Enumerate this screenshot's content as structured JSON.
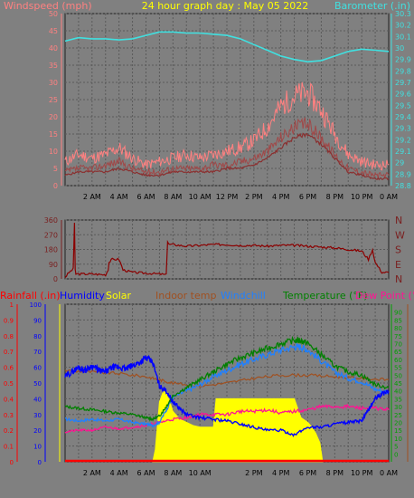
{
  "header": {
    "left_title": "Windspeed (mph)",
    "title": "24 hour graph day : May 05 2022",
    "right_title": "Barometer (.in)"
  },
  "colors": {
    "background": "#808080",
    "grid": "#5a5a5a",
    "wind_axis": "#ff8080",
    "baro_axis": "#40e0e0",
    "title": "#ffff00",
    "dir_axis": "#7a2020",
    "windspeed_line": "#ff8080",
    "windgust_line": "#ff8080",
    "avg_speed_line": "#8a3030",
    "direction_line": "#8b0000",
    "rain": "#ff0000",
    "humidity": "#0000ff",
    "solar": "#ffff00",
    "indoor": "#a05020",
    "windchill": "#2080ff",
    "temperature": "#008000",
    "dewpoint": "#ff1493",
    "temp_axis": "#00a000",
    "indoor_axis": "#a05020"
  },
  "chart_data": [
    {
      "type": "line",
      "x_tick_labels": [
        "2 AM",
        "4 AM",
        "6 AM",
        "8 AM",
        "10 AM",
        "12 PM",
        "2 PM",
        "4 PM",
        "6 PM",
        "8 PM",
        "10 PM",
        "0 AM"
      ],
      "xlim_hours": [
        0,
        24
      ],
      "y_left": {
        "label": "Windspeed (mph)",
        "ylim": [
          0,
          50
        ],
        "ticks": [
          "0",
          "5",
          "10",
          "15",
          "20",
          "25",
          "30",
          "35",
          "40",
          "45",
          "50"
        ]
      },
      "y_right": {
        "label": "Barometer (.in)",
        "ylim": [
          28.8,
          30.3
        ],
        "ticks": [
          "28.8",
          "28.9",
          "29",
          "29.1",
          "29.2",
          "29.3",
          "29.4",
          "29.5",
          "29.6",
          "29.7",
          "29.8",
          "29.9",
          "30",
          "30.1",
          "30.2",
          "30.3"
        ]
      },
      "series": [
        {
          "key": "barometer",
          "axis": "right",
          "x": [
            0,
            1,
            2,
            3,
            4,
            5,
            6,
            7,
            8,
            9,
            10,
            11,
            12,
            13,
            14,
            15,
            16,
            17,
            18,
            19,
            20,
            21,
            22,
            23,
            24
          ],
          "y": [
            30.06,
            30.09,
            30.08,
            30.08,
            30.07,
            30.08,
            30.11,
            30.14,
            30.14,
            30.13,
            30.13,
            30.12,
            30.11,
            30.08,
            30.03,
            29.98,
            29.93,
            29.9,
            29.88,
            29.89,
            29.93,
            29.97,
            29.99,
            29.98,
            29.97
          ]
        },
        {
          "key": "windgust",
          "axis": "left",
          "x": [
            0,
            1,
            2,
            3,
            4,
            5,
            6,
            7,
            8,
            9,
            10,
            11,
            12,
            13,
            14,
            15,
            16,
            17,
            18,
            19,
            20,
            21,
            22,
            23,
            24
          ],
          "y": [
            7,
            9,
            8,
            9,
            11,
            8,
            6,
            7,
            8,
            9,
            8,
            9,
            10,
            11,
            13,
            17,
            23,
            26,
            27,
            22,
            15,
            9,
            7,
            6,
            6
          ]
        },
        {
          "key": "windspeed",
          "axis": "left",
          "x": [
            0,
            1,
            2,
            3,
            4,
            5,
            6,
            7,
            8,
            9,
            10,
            11,
            12,
            13,
            14,
            15,
            16,
            17,
            18,
            19,
            20,
            21,
            22,
            23,
            24
          ],
          "y": [
            4,
            5,
            5,
            6,
            7,
            5,
            4,
            4,
            5,
            5,
            5,
            6,
            6,
            7,
            8,
            10,
            14,
            17,
            18,
            14,
            9,
            5,
            4,
            3,
            3
          ]
        },
        {
          "key": "avg_speed",
          "axis": "left",
          "x": [
            0,
            1,
            2,
            3,
            4,
            5,
            6,
            7,
            8,
            9,
            10,
            11,
            12,
            13,
            14,
            15,
            16,
            17,
            18,
            19,
            20,
            21,
            22,
            23,
            24
          ],
          "y": [
            3,
            4,
            4,
            4,
            5,
            4,
            3,
            3,
            4,
            4,
            4,
            4,
            5,
            5,
            6,
            8,
            11,
            14,
            15,
            12,
            8,
            4,
            3,
            2,
            2
          ]
        }
      ]
    },
    {
      "type": "line",
      "x_tick_labels": [],
      "xlim_hours": [
        0,
        24
      ],
      "y_left": {
        "label": "",
        "ylim": [
          0,
          360
        ],
        "ticks": [
          "0",
          "90",
          "180",
          "270",
          "360"
        ]
      },
      "y_right": {
        "label": "",
        "ticks": [
          "N",
          "E",
          "S",
          "W",
          "N"
        ]
      },
      "series": [
        {
          "key": "direction",
          "axis": "left",
          "x": [
            0,
            0.3,
            0.6,
            0.7,
            0.75,
            0.8,
            1,
            2,
            3,
            3.2,
            3.25,
            3.5,
            4,
            4.3,
            5,
            6,
            7,
            7.5,
            7.6,
            7.7,
            8,
            9,
            10,
            11,
            12,
            13,
            14,
            15,
            16,
            17,
            18,
            19,
            20,
            21,
            22,
            22.5,
            22.8,
            23,
            23.5,
            24
          ],
          "y": [
            10,
            40,
            60,
            345,
            50,
            30,
            30,
            30,
            25,
            55,
            100,
            120,
            120,
            55,
            40,
            35,
            30,
            25,
            230,
            210,
            210,
            200,
            205,
            210,
            210,
            205,
            205,
            200,
            205,
            205,
            200,
            195,
            190,
            180,
            170,
            120,
            180,
            100,
            40,
            40
          ]
        }
      ]
    },
    {
      "type": "line",
      "x_tick_labels": [
        "2 AM",
        "4 AM",
        "6 AM",
        "8 AM",
        "10 AM",
        "2 PM",
        "4 PM",
        "6 PM",
        "8 PM",
        "10 PM",
        "0 AM"
      ],
      "xlim_hours": [
        0,
        24
      ],
      "legend": [
        "Rainfall (.in)",
        "Humidity",
        "Solar",
        "Indoor temp",
        "Windchill",
        "Temperature (°F)",
        "Dew Point (°F)"
      ],
      "y_rain": {
        "label": "Rainfall (.in)",
        "ylim": [
          0,
          1
        ],
        "ticks": [
          "0",
          "0.1",
          "0.2",
          "0.3",
          "0.4",
          "0.5",
          "0.6",
          "0.7",
          "0.8",
          "0.9",
          "1"
        ]
      },
      "y_humidity": {
        "label": "Humidity",
        "ylim": [
          0,
          100
        ],
        "ticks": [
          "0",
          "10",
          "20",
          "30",
          "40",
          "50",
          "60",
          "70",
          "80",
          "90",
          "100"
        ]
      },
      "y_temp": {
        "label": "Temperature (°F)",
        "ylim": [
          -5,
          95
        ],
        "ticks": [
          "0",
          "5",
          "10",
          "15",
          "20",
          "25",
          "30",
          "35",
          "40",
          "45",
          "50",
          "55",
          "60",
          "65",
          "70",
          "75",
          "80",
          "85",
          "90"
        ]
      },
      "series": [
        {
          "key": "humidity",
          "axis": "humidity",
          "x": [
            0,
            0.5,
            1,
            1.5,
            2,
            2.5,
            3,
            3.5,
            4,
            4.5,
            5,
            5.5,
            6,
            6.5,
            7,
            7.5,
            8,
            8.5,
            9,
            10,
            11,
            12,
            13,
            14,
            15,
            16,
            17,
            18,
            19,
            20,
            21,
            22,
            22.5,
            23,
            23.5,
            24
          ],
          "y": [
            54,
            57,
            60,
            58,
            61,
            58,
            57,
            60,
            60,
            59,
            61,
            63,
            66,
            63,
            48,
            45,
            38,
            34,
            30,
            28,
            27,
            26,
            24,
            22,
            20,
            20,
            17,
            22,
            22,
            24,
            25,
            26,
            33,
            40,
            43,
            45
          ]
        },
        {
          "key": "indoor_temp",
          "axis": "humidity",
          "x": [
            0,
            2,
            4,
            6,
            7,
            8,
            10,
            12,
            14,
            16,
            18,
            20,
            22,
            24
          ],
          "y": [
            58,
            57,
            56,
            54,
            52,
            50,
            48,
            50,
            53,
            55,
            55,
            54,
            53,
            52
          ]
        },
        {
          "key": "temperature",
          "axis": "temp",
          "x": [
            0,
            1,
            2,
            3,
            4,
            5,
            6,
            6.5,
            7,
            7.5,
            8,
            9,
            10,
            11,
            12,
            13,
            14,
            15,
            16,
            17,
            17.5,
            18,
            19,
            20,
            21,
            22,
            23,
            24
          ],
          "y": [
            30,
            29,
            28,
            27,
            26,
            25,
            23,
            22,
            24,
            30,
            37,
            42,
            47,
            52,
            57,
            61,
            64,
            67,
            70,
            72,
            72,
            70,
            63,
            56,
            52,
            50,
            44,
            42
          ]
        },
        {
          "key": "windchill",
          "axis": "temp",
          "x": [
            0,
            1,
            2,
            3,
            4,
            5,
            6,
            6.5,
            7,
            7.5,
            8,
            9,
            10,
            11,
            12,
            13,
            14,
            15,
            16,
            17,
            17.5,
            18,
            19,
            20,
            21,
            22,
            23,
            24
          ],
          "y": [
            22,
            21,
            22,
            21,
            22,
            20,
            19,
            18,
            20,
            28,
            36,
            40,
            44,
            49,
            53,
            57,
            60,
            63,
            66,
            68,
            68,
            66,
            59,
            52,
            48,
            46,
            41,
            39
          ]
        },
        {
          "key": "dew_point",
          "axis": "temp",
          "x": [
            0,
            1,
            2,
            3,
            4,
            5,
            6,
            7,
            8,
            9,
            10,
            11,
            12,
            13,
            14,
            15,
            16,
            17,
            18,
            19,
            20,
            21,
            22,
            23,
            24
          ],
          "y": [
            14,
            15,
            15,
            17,
            16,
            17,
            18,
            20,
            22,
            23,
            25,
            25,
            25,
            27,
            27,
            28,
            26,
            27,
            28,
            30,
            30,
            30,
            29,
            29,
            28
          ]
        },
        {
          "key": "solar",
          "axis": "humidity",
          "x": [
            6.5,
            6.7,
            7,
            7.3,
            7.6,
            8,
            8.5,
            9,
            9.5,
            10,
            10.5,
            11,
            11.2,
            11.5,
            12,
            14,
            16,
            17,
            17.5,
            18,
            18.3,
            18.6,
            18.9,
            19.1
          ],
          "y": [
            0,
            8,
            38,
            45,
            42,
            32,
            27,
            25,
            23,
            22,
            22,
            22,
            40,
            40,
            40,
            40,
            40,
            40,
            28,
            25,
            22,
            18,
            12,
            0
          ]
        },
        {
          "key": "rainfall",
          "axis": "rain",
          "x": [
            0,
            24
          ],
          "y": [
            0,
            0
          ]
        }
      ]
    }
  ]
}
